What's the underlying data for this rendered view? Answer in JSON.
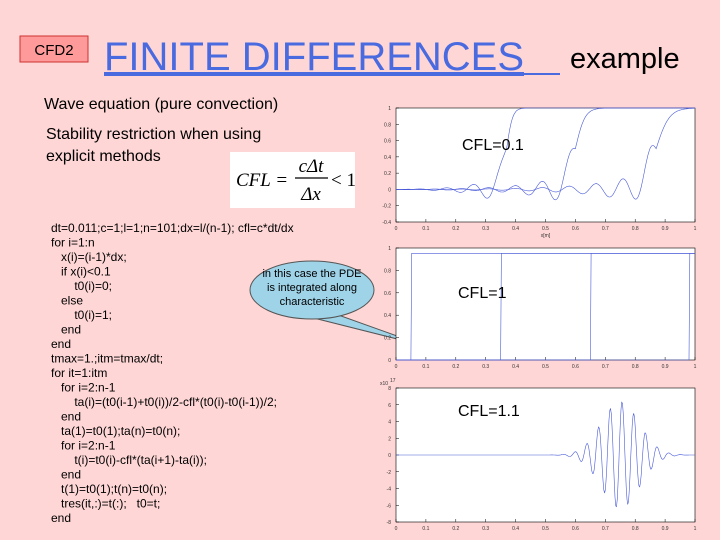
{
  "slide": {
    "tag": "CFD2",
    "title": "FINITE DIFFERENCES",
    "title_suffix": "example",
    "subtitle": "Wave equation (pure convection)",
    "stability": [
      "Stability restriction when using",
      "explicit methods"
    ],
    "formula": {
      "lhs": "CFL =",
      "numerator": "cΔt",
      "denominator": "Δx",
      "rhs": "< 1"
    },
    "code": [
      "dt=0.011;c=1;l=1;n=101;dx=l/(n-1); cfl=c*dt/dx",
      "for i=1:n",
      "   x(i)=(i-1)*dx;",
      "   if x(i)<0.1",
      "       t0(i)=0;",
      "   else",
      "       t0(i)=1;",
      "   end",
      "end",
      "tmax=1.;itm=tmax/dt;",
      "for it=1:itm",
      "   for i=2:n-1",
      "       ta(i)=(t0(i-1)+t0(i))/2-cfl*(t0(i)-t0(i-1))/2;",
      "   end",
      "   ta(1)=t0(1);ta(n)=t0(n);",
      "   for i=2:n-1",
      "       t(i)=t0(i)-cfl*(ta(i+1)-ta(i));",
      "   end",
      "   t(1)=t0(1);t(n)=t0(n);",
      "   tres(it,:)=t(:);   t0=t;",
      "end"
    ],
    "callout": [
      "in this case the PDE",
      "is integrated along",
      "characteristic"
    ],
    "plots": [
      {
        "label": "CFL=0.1",
        "xlabel": "x[m]",
        "xticks": [
          0,
          0.1,
          0.2,
          0.3,
          0.4,
          0.5,
          0.6,
          0.7,
          0.8,
          0.9,
          1
        ],
        "yticks": [
          -0.4,
          -0.2,
          0,
          0.2,
          0.4,
          0.6,
          0.8,
          1
        ]
      },
      {
        "label": "CFL=1",
        "xticks": [
          0,
          0.1,
          0.2,
          0.3,
          0.4,
          0.5,
          0.6,
          0.7,
          0.8,
          0.9,
          1
        ],
        "yticks": [
          0,
          0.2,
          0.4,
          0.6,
          0.8,
          1
        ]
      },
      {
        "label": "CFL=1.1",
        "exponent_base": "x10",
        "exponent": "17",
        "xticks": [
          0,
          0.1,
          0.2,
          0.3,
          0.4,
          0.5,
          0.6,
          0.7,
          0.8,
          0.9,
          1
        ],
        "yticks": [
          -8,
          -6,
          -4,
          -2,
          0,
          2,
          4,
          6,
          8
        ]
      }
    ]
  }
}
